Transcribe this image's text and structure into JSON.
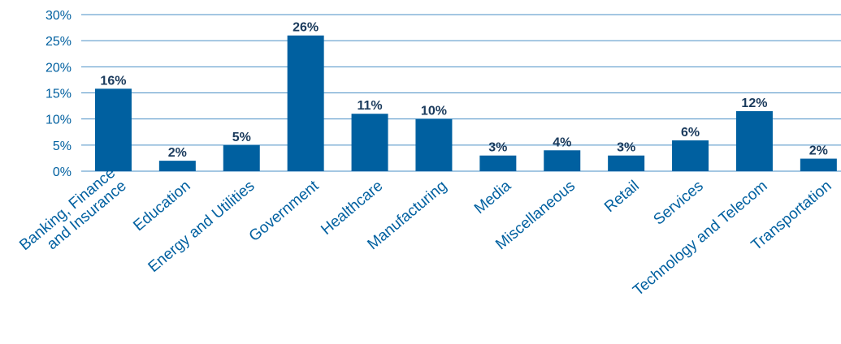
{
  "chart_data": {
    "type": "bar",
    "categories": [
      "Banking, Finance and Insurance",
      "Education",
      "Energy and Utilities",
      "Government",
      "Healthcare",
      "Manufacturing",
      "Media",
      "Miscellaneous",
      "Retail",
      "Services",
      "Technology and Telecom",
      "Transportation"
    ],
    "category_lines": [
      [
        "Banking, Finance",
        "and Insurance"
      ],
      [
        "Education"
      ],
      [
        "Energy and Utilities"
      ],
      [
        "Government"
      ],
      [
        "Healthcare"
      ],
      [
        "Manufacturing"
      ],
      [
        "Media"
      ],
      [
        "Miscellaneous"
      ],
      [
        "Retail"
      ],
      [
        "Services"
      ],
      [
        "Technology and Telecom"
      ],
      [
        "Transportation"
      ]
    ],
    "values": [
      15.8,
      2,
      5,
      26,
      11,
      10,
      3,
      4,
      3,
      5.9,
      11.5,
      2.4
    ],
    "data_labels": [
      "16%",
      "2%",
      "5%",
      "26%",
      "11%",
      "10%",
      "3%",
      "4%",
      "3%",
      "6%",
      "12%",
      "2%"
    ],
    "y_ticks": [
      "0%",
      "5%",
      "10%",
      "15%",
      "20%",
      "25%",
      "30%"
    ],
    "y_tick_values": [
      0,
      5,
      10,
      15,
      20,
      25,
      30
    ],
    "title": "",
    "xlabel": "",
    "ylabel": "",
    "ylim": [
      0,
      30
    ],
    "grid": true,
    "legend": "none",
    "colors": {
      "bar": "#0060a0",
      "text": "#0060a0",
      "data_label": "#1a3a5c",
      "grid": "#4a8fc4"
    }
  }
}
